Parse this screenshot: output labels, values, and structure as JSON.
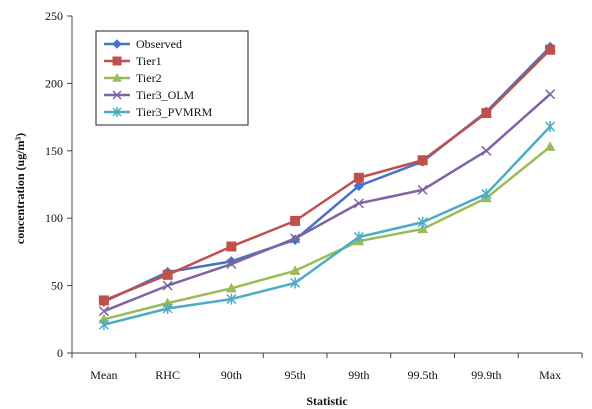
{
  "chart_data": {
    "type": "line",
    "xlabel": "Statistic",
    "ylabel": "concentration (ug/m³)",
    "ylim": [
      0,
      250
    ],
    "yticks": [
      0,
      50,
      100,
      150,
      200,
      250
    ],
    "categories": [
      "Mean",
      "RHC",
      "90th",
      "95th",
      "99th",
      "99.5th",
      "99.9th",
      "Max"
    ],
    "legend_position": "top-left",
    "grid": false,
    "series": [
      {
        "name": "Observed",
        "color": "#4472C4",
        "marker": "diamond",
        "values": [
          38,
          60,
          68,
          84,
          124,
          142,
          179,
          227
        ]
      },
      {
        "name": "Tier1",
        "color": "#C0504D",
        "marker": "square",
        "values": [
          39,
          58,
          79,
          98,
          130,
          143,
          178,
          225
        ]
      },
      {
        "name": "Tier2",
        "color": "#9BBB59",
        "marker": "triangle",
        "values": [
          25,
          37,
          48,
          61,
          83,
          92,
          115,
          153
        ]
      },
      {
        "name": "Tier3_OLM",
        "color": "#8064A2",
        "marker": "x",
        "values": [
          31,
          50,
          66,
          85,
          111,
          121,
          150,
          192
        ]
      },
      {
        "name": "Tier3_PVMRM",
        "color": "#4BACC6",
        "marker": "asterisk",
        "values": [
          21,
          33,
          40,
          52,
          86,
          97,
          118,
          168
        ]
      }
    ]
  }
}
